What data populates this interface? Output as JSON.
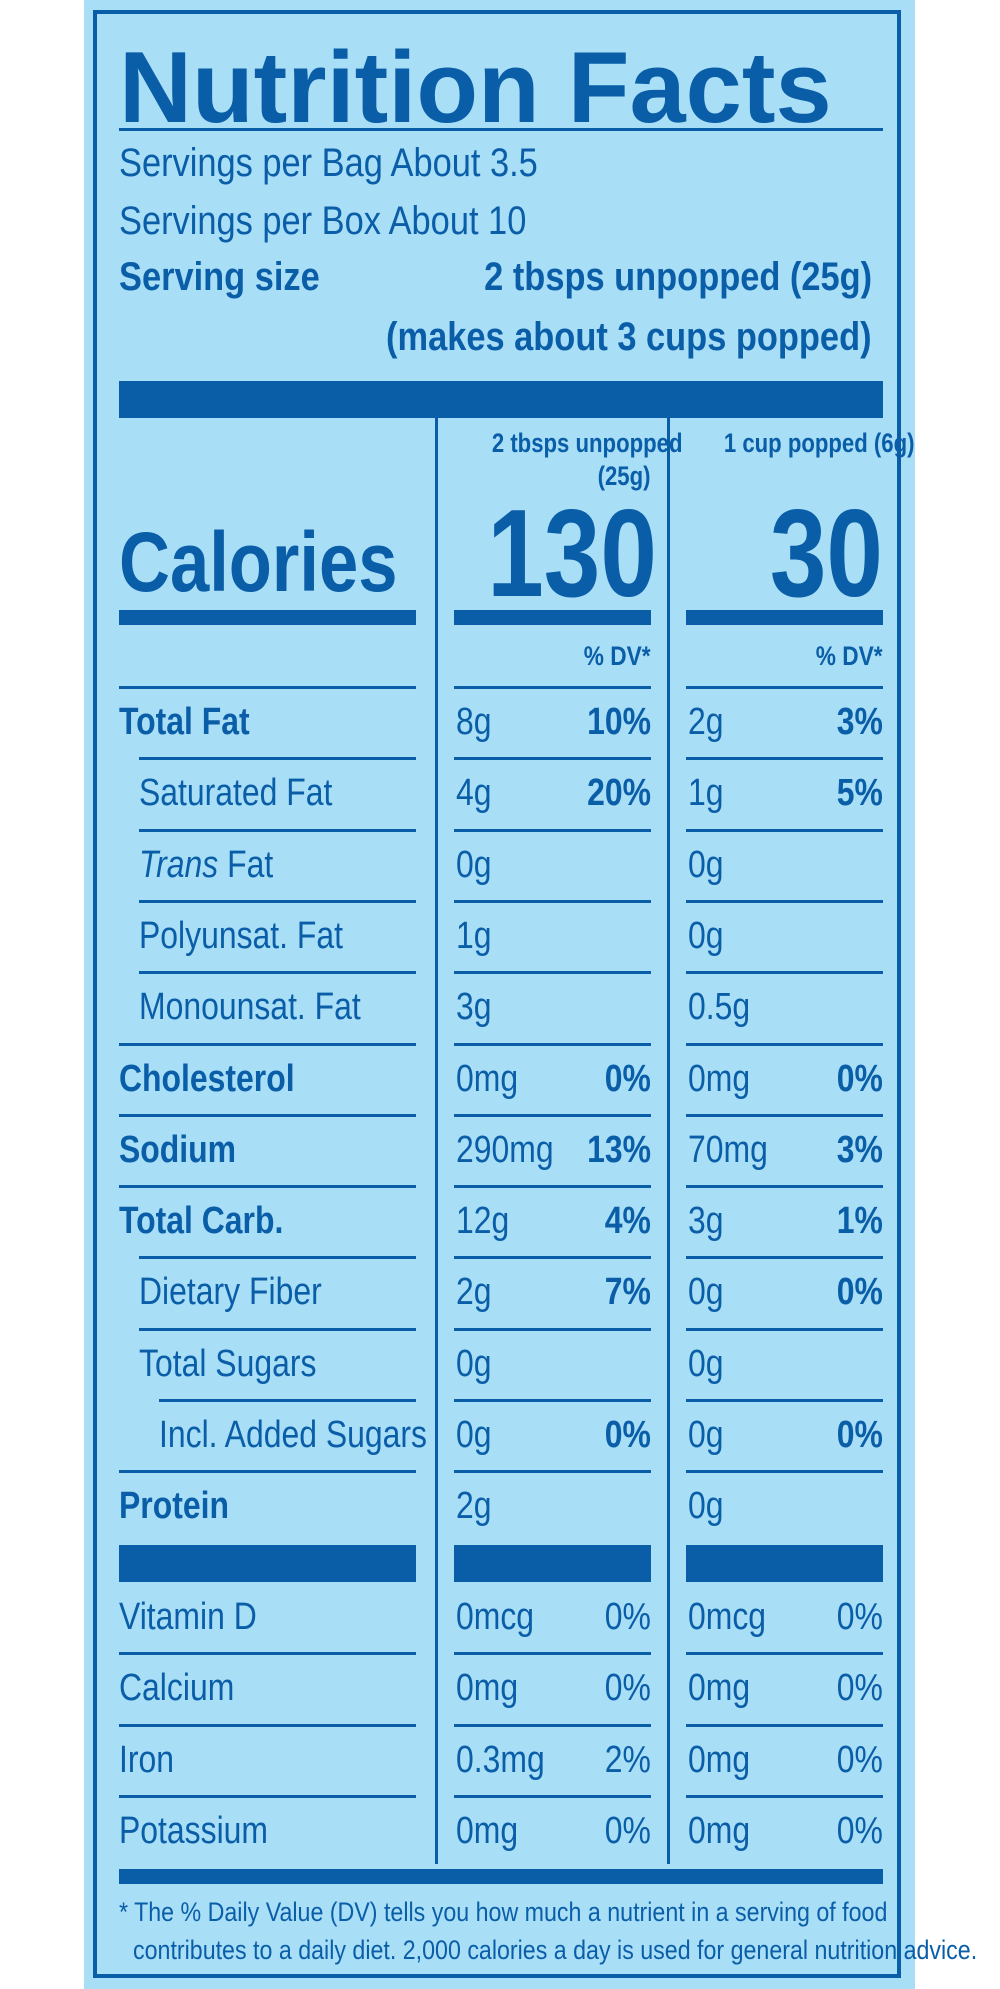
{
  "title": "Nutrition Facts",
  "servings": {
    "per_bag": "Servings per Bag About 3.5",
    "per_box": "Servings per Box About 10",
    "size_label": "Serving size",
    "size_value": "2 tbsps unpopped (25g)",
    "size_note": "(makes about 3 cups popped)"
  },
  "columns": {
    "col1_line1": "2 tbsps unpopped",
    "col1_line2": "(25g)",
    "col2": "1 cup popped (6g)",
    "dv_header": "% DV*"
  },
  "calories": {
    "label": "Calories",
    "col1": "130",
    "col2": "30"
  },
  "nutrients": [
    {
      "name": "Total Fat",
      "v1": "8g",
      "d1": "10%",
      "v2": "2g",
      "d2": "3%"
    },
    {
      "name": "Saturated Fat",
      "v1": "4g",
      "d1": "20%",
      "v2": "1g",
      "d2": "5%"
    },
    {
      "name_italic": "Trans",
      "name_rest": " Fat",
      "v1": "0g",
      "d1": "",
      "v2": "0g",
      "d2": ""
    },
    {
      "name": "Polyunsat. Fat",
      "v1": "1g",
      "d1": "",
      "v2": "0g",
      "d2": ""
    },
    {
      "name": "Monounsat. Fat",
      "v1": "3g",
      "d1": "",
      "v2": "0.5g",
      "d2": ""
    },
    {
      "name": "Cholesterol",
      "v1": "0mg",
      "d1": "0%",
      "v2": "0mg",
      "d2": "0%"
    },
    {
      "name": "Sodium",
      "v1": "290mg",
      "d1": "13%",
      "v2": "70mg",
      "d2": "3%"
    },
    {
      "name": "Total Carb.",
      "v1": "12g",
      "d1": "4%",
      "v2": "3g",
      "d2": "1%"
    },
    {
      "name": "Dietary Fiber",
      "v1": "2g",
      "d1": "7%",
      "v2": "0g",
      "d2": "0%"
    },
    {
      "name": "Total Sugars",
      "v1": "0g",
      "d1": "",
      "v2": "0g",
      "d2": ""
    },
    {
      "name": "Incl. Added Sugars",
      "v1": "0g",
      "d1": "0%",
      "v2": "0g",
      "d2": "0%"
    },
    {
      "name": "Protein",
      "v1": "2g",
      "d1": "",
      "v2": "0g",
      "d2": ""
    }
  ],
  "vitamins": [
    {
      "name": "Vitamin D",
      "v1": "0mcg",
      "d1": "0%",
      "v2": "0mcg",
      "d2": "0%"
    },
    {
      "name": "Calcium",
      "v1": "0mg",
      "d1": "0%",
      "v2": "0mg",
      "d2": "0%"
    },
    {
      "name": "Iron",
      "v1": "0.3mg",
      "d1": "2%",
      "v2": "0mg",
      "d2": "0%"
    },
    {
      "name": "Potassium",
      "v1": "0mg",
      "d1": "0%",
      "v2": "0mg",
      "d2": "0%"
    }
  ],
  "footnote": {
    "line1": "* The % Daily Value (DV) tells you how much a nutrient in a serving of food",
    "line2": "contributes to a daily diet. 2,000 calories a day is used for general nutrition advice."
  },
  "colors": {
    "label_bg": "#a9def7",
    "ink": "#0a5ea8"
  }
}
